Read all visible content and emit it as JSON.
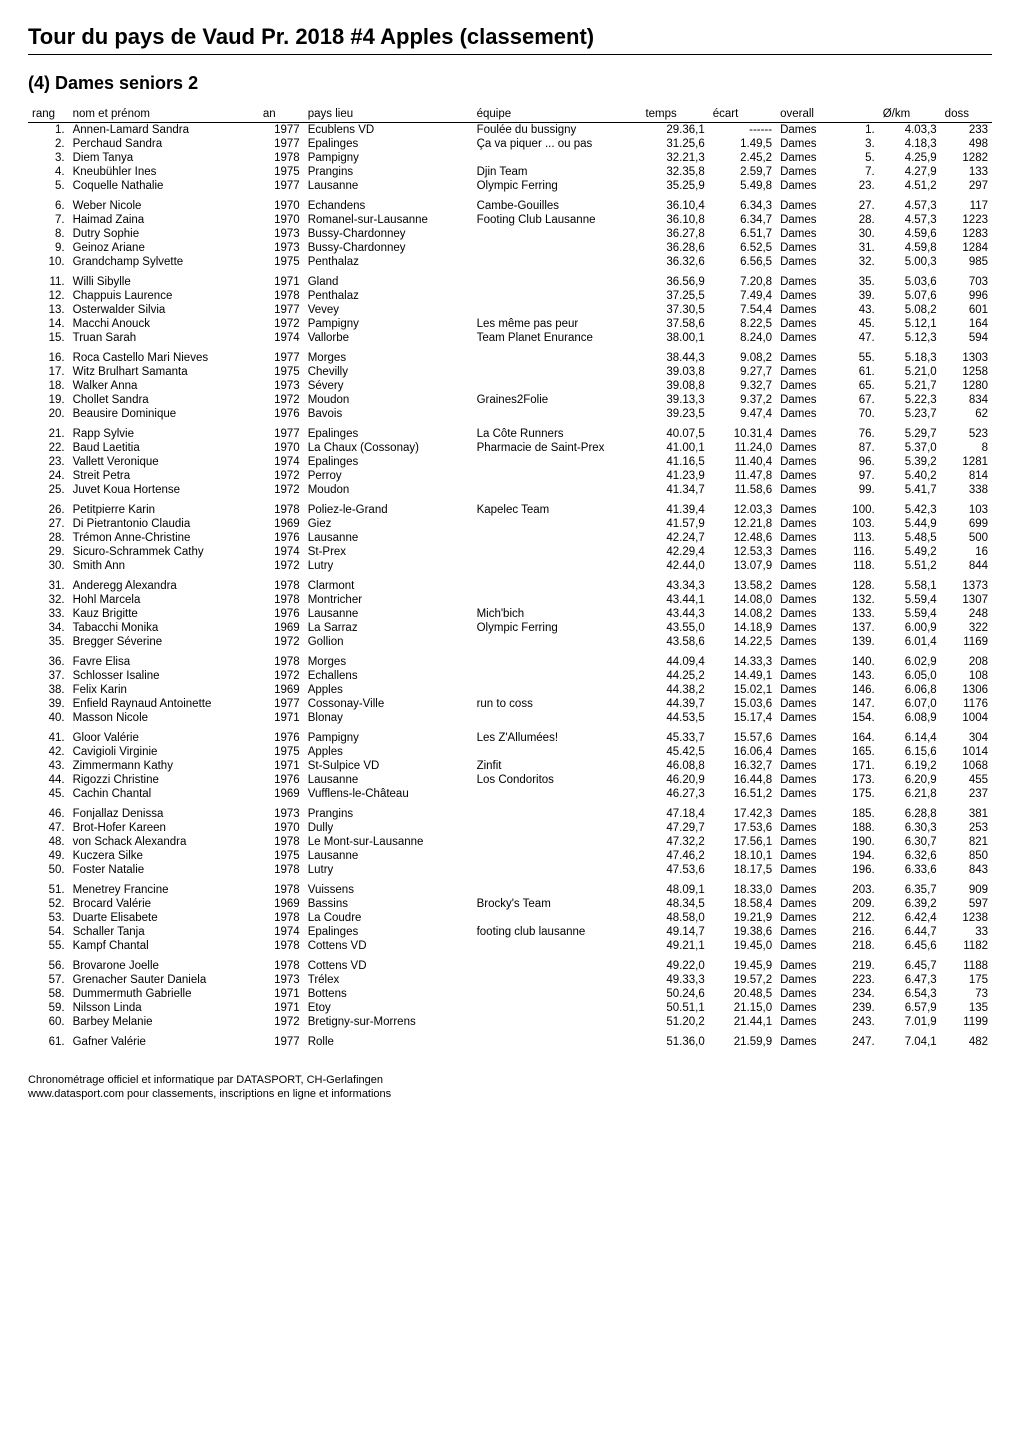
{
  "page_title": "Tour du pays de Vaud Pr. 2018 #4 Apples (classement)",
  "section_title": "(4) Dames seniors 2",
  "columns": {
    "rang": "rang",
    "nom": "nom et prénom",
    "an": "an",
    "lieu": "pays lieu",
    "equipe": "équipe",
    "temps": "temps",
    "ecart": "écart",
    "overall": "overall",
    "okm": "Ø/km",
    "doss": "doss"
  },
  "footer_line1": "Chronométrage officiel et informatique par DATASPORT, CH-Gerlafingen",
  "footer_line2": "www.datasport.com pour classements, inscriptions en ligne et informations",
  "groups": [
    [
      {
        "rang": "1.",
        "nom": "Annen-Lamard Sandra",
        "an": "1977",
        "lieu": "Ecublens VD",
        "equipe": "Foulée du bussigny",
        "temps": "29.36,1",
        "ecart": "------",
        "overall": "Dames",
        "ovrank": "1.",
        "okm": "4.03,3",
        "doss": "233"
      },
      {
        "rang": "2.",
        "nom": "Perchaud Sandra",
        "an": "1977",
        "lieu": "Epalinges",
        "equipe": "Ça va piquer ... ou pas",
        "temps": "31.25,6",
        "ecart": "1.49,5",
        "overall": "Dames",
        "ovrank": "3.",
        "okm": "4.18,3",
        "doss": "498"
      },
      {
        "rang": "3.",
        "nom": "Diem Tanya",
        "an": "1978",
        "lieu": "Pampigny",
        "equipe": "",
        "temps": "32.21,3",
        "ecart": "2.45,2",
        "overall": "Dames",
        "ovrank": "5.",
        "okm": "4.25,9",
        "doss": "1282"
      },
      {
        "rang": "4.",
        "nom": "Kneubühler Ines",
        "an": "1975",
        "lieu": "Prangins",
        "equipe": "Djin Team",
        "temps": "32.35,8",
        "ecart": "2.59,7",
        "overall": "Dames",
        "ovrank": "7.",
        "okm": "4.27,9",
        "doss": "133"
      },
      {
        "rang": "5.",
        "nom": "Coquelle Nathalie",
        "an": "1977",
        "lieu": "Lausanne",
        "equipe": "Olympic Ferring",
        "temps": "35.25,9",
        "ecart": "5.49,8",
        "overall": "Dames",
        "ovrank": "23.",
        "okm": "4.51,2",
        "doss": "297"
      }
    ],
    [
      {
        "rang": "6.",
        "nom": "Weber Nicole",
        "an": "1970",
        "lieu": "Echandens",
        "equipe": "Cambe-Gouilles",
        "temps": "36.10,4",
        "ecart": "6.34,3",
        "overall": "Dames",
        "ovrank": "27.",
        "okm": "4.57,3",
        "doss": "117"
      },
      {
        "rang": "7.",
        "nom": "Haimad Zaina",
        "an": "1970",
        "lieu": "Romanel-sur-Lausanne",
        "equipe": "Footing Club Lausanne",
        "temps": "36.10,8",
        "ecart": "6.34,7",
        "overall": "Dames",
        "ovrank": "28.",
        "okm": "4.57,3",
        "doss": "1223"
      },
      {
        "rang": "8.",
        "nom": "Dutry Sophie",
        "an": "1973",
        "lieu": "Bussy-Chardonney",
        "equipe": "",
        "temps": "36.27,8",
        "ecart": "6.51,7",
        "overall": "Dames",
        "ovrank": "30.",
        "okm": "4.59,6",
        "doss": "1283"
      },
      {
        "rang": "9.",
        "nom": "Geinoz Ariane",
        "an": "1973",
        "lieu": "Bussy-Chardonney",
        "equipe": "",
        "temps": "36.28,6",
        "ecart": "6.52,5",
        "overall": "Dames",
        "ovrank": "31.",
        "okm": "4.59,8",
        "doss": "1284"
      },
      {
        "rang": "10.",
        "nom": "Grandchamp Sylvette",
        "an": "1975",
        "lieu": "Penthalaz",
        "equipe": "",
        "temps": "36.32,6",
        "ecart": "6.56,5",
        "overall": "Dames",
        "ovrank": "32.",
        "okm": "5.00,3",
        "doss": "985"
      }
    ],
    [
      {
        "rang": "11.",
        "nom": "Willi Sibylle",
        "an": "1971",
        "lieu": "Gland",
        "equipe": "",
        "temps": "36.56,9",
        "ecart": "7.20,8",
        "overall": "Dames",
        "ovrank": "35.",
        "okm": "5.03,6",
        "doss": "703"
      },
      {
        "rang": "12.",
        "nom": "Chappuis Laurence",
        "an": "1978",
        "lieu": "Penthalaz",
        "equipe": "",
        "temps": "37.25,5",
        "ecart": "7.49,4",
        "overall": "Dames",
        "ovrank": "39.",
        "okm": "5.07,6",
        "doss": "996"
      },
      {
        "rang": "13.",
        "nom": "Osterwalder Silvia",
        "an": "1977",
        "lieu": "Vevey",
        "equipe": "",
        "temps": "37.30,5",
        "ecart": "7.54,4",
        "overall": "Dames",
        "ovrank": "43.",
        "okm": "5.08,2",
        "doss": "601"
      },
      {
        "rang": "14.",
        "nom": "Macchi Anouck",
        "an": "1972",
        "lieu": "Pampigny",
        "equipe": "Les même pas peur",
        "temps": "37.58,6",
        "ecart": "8.22,5",
        "overall": "Dames",
        "ovrank": "45.",
        "okm": "5.12,1",
        "doss": "164"
      },
      {
        "rang": "15.",
        "nom": "Truan Sarah",
        "an": "1974",
        "lieu": "Vallorbe",
        "equipe": "Team Planet Enurance",
        "temps": "38.00,1",
        "ecart": "8.24,0",
        "overall": "Dames",
        "ovrank": "47.",
        "okm": "5.12,3",
        "doss": "594"
      }
    ],
    [
      {
        "rang": "16.",
        "nom": "Roca Castello Mari Nieves",
        "an": "1977",
        "lieu": "Morges",
        "equipe": "",
        "temps": "38.44,3",
        "ecart": "9.08,2",
        "overall": "Dames",
        "ovrank": "55.",
        "okm": "5.18,3",
        "doss": "1303"
      },
      {
        "rang": "17.",
        "nom": "Witz Brulhart Samanta",
        "an": "1975",
        "lieu": "Chevilly",
        "equipe": "",
        "temps": "39.03,8",
        "ecart": "9.27,7",
        "overall": "Dames",
        "ovrank": "61.",
        "okm": "5.21,0",
        "doss": "1258"
      },
      {
        "rang": "18.",
        "nom": "Walker Anna",
        "an": "1973",
        "lieu": "Sévery",
        "equipe": "",
        "temps": "39.08,8",
        "ecart": "9.32,7",
        "overall": "Dames",
        "ovrank": "65.",
        "okm": "5.21,7",
        "doss": "1280"
      },
      {
        "rang": "19.",
        "nom": "Chollet Sandra",
        "an": "1972",
        "lieu": "Moudon",
        "equipe": "Graines2Folie",
        "temps": "39.13,3",
        "ecart": "9.37,2",
        "overall": "Dames",
        "ovrank": "67.",
        "okm": "5.22,3",
        "doss": "834"
      },
      {
        "rang": "20.",
        "nom": "Beausire Dominique",
        "an": "1976",
        "lieu": "Bavois",
        "equipe": "",
        "temps": "39.23,5",
        "ecart": "9.47,4",
        "overall": "Dames",
        "ovrank": "70.",
        "okm": "5.23,7",
        "doss": "62"
      }
    ],
    [
      {
        "rang": "21.",
        "nom": "Rapp Sylvie",
        "an": "1977",
        "lieu": "Epalinges",
        "equipe": "La Côte Runners",
        "temps": "40.07,5",
        "ecart": "10.31,4",
        "overall": "Dames",
        "ovrank": "76.",
        "okm": "5.29,7",
        "doss": "523"
      },
      {
        "rang": "22.",
        "nom": "Baud Laetitia",
        "an": "1970",
        "lieu": "La Chaux (Cossonay)",
        "equipe": "Pharmacie de Saint-Prex",
        "temps": "41.00,1",
        "ecart": "11.24,0",
        "overall": "Dames",
        "ovrank": "87.",
        "okm": "5.37,0",
        "doss": "8"
      },
      {
        "rang": "23.",
        "nom": "Vallett Veronique",
        "an": "1974",
        "lieu": "Epalinges",
        "equipe": "",
        "temps": "41.16,5",
        "ecart": "11.40,4",
        "overall": "Dames",
        "ovrank": "96.",
        "okm": "5.39,2",
        "doss": "1281"
      },
      {
        "rang": "24.",
        "nom": "Streit Petra",
        "an": "1972",
        "lieu": "Perroy",
        "equipe": "",
        "temps": "41.23,9",
        "ecart": "11.47,8",
        "overall": "Dames",
        "ovrank": "97.",
        "okm": "5.40,2",
        "doss": "814"
      },
      {
        "rang": "25.",
        "nom": "Juvet Koua Hortense",
        "an": "1972",
        "lieu": "Moudon",
        "equipe": "",
        "temps": "41.34,7",
        "ecart": "11.58,6",
        "overall": "Dames",
        "ovrank": "99.",
        "okm": "5.41,7",
        "doss": "338"
      }
    ],
    [
      {
        "rang": "26.",
        "nom": "Petitpierre Karin",
        "an": "1978",
        "lieu": "Poliez-le-Grand",
        "equipe": "Kapelec Team",
        "temps": "41.39,4",
        "ecart": "12.03,3",
        "overall": "Dames",
        "ovrank": "100.",
        "okm": "5.42,3",
        "doss": "103"
      },
      {
        "rang": "27.",
        "nom": "Di Pietrantonio Claudia",
        "an": "1969",
        "lieu": "Giez",
        "equipe": "",
        "temps": "41.57,9",
        "ecart": "12.21,8",
        "overall": "Dames",
        "ovrank": "103.",
        "okm": "5.44,9",
        "doss": "699"
      },
      {
        "rang": "28.",
        "nom": "Trémon Anne-Christine",
        "an": "1976",
        "lieu": "Lausanne",
        "equipe": "",
        "temps": "42.24,7",
        "ecart": "12.48,6",
        "overall": "Dames",
        "ovrank": "113.",
        "okm": "5.48,5",
        "doss": "500"
      },
      {
        "rang": "29.",
        "nom": "Sicuro-Schrammek Cathy",
        "an": "1974",
        "lieu": "St-Prex",
        "equipe": "",
        "temps": "42.29,4",
        "ecart": "12.53,3",
        "overall": "Dames",
        "ovrank": "116.",
        "okm": "5.49,2",
        "doss": "16"
      },
      {
        "rang": "30.",
        "nom": "Smith Ann",
        "an": "1972",
        "lieu": "Lutry",
        "equipe": "",
        "temps": "42.44,0",
        "ecart": "13.07,9",
        "overall": "Dames",
        "ovrank": "118.",
        "okm": "5.51,2",
        "doss": "844"
      }
    ],
    [
      {
        "rang": "31.",
        "nom": "Anderegg Alexandra",
        "an": "1978",
        "lieu": "Clarmont",
        "equipe": "",
        "temps": "43.34,3",
        "ecart": "13.58,2",
        "overall": "Dames",
        "ovrank": "128.",
        "okm": "5.58,1",
        "doss": "1373"
      },
      {
        "rang": "32.",
        "nom": "Hohl Marcela",
        "an": "1978",
        "lieu": "Montricher",
        "equipe": "",
        "temps": "43.44,1",
        "ecart": "14.08,0",
        "overall": "Dames",
        "ovrank": "132.",
        "okm": "5.59,4",
        "doss": "1307"
      },
      {
        "rang": "33.",
        "nom": "Kauz Brigitte",
        "an": "1976",
        "lieu": "Lausanne",
        "equipe": "Mich'bich",
        "temps": "43.44,3",
        "ecart": "14.08,2",
        "overall": "Dames",
        "ovrank": "133.",
        "okm": "5.59,4",
        "doss": "248"
      },
      {
        "rang": "34.",
        "nom": "Tabacchi Monika",
        "an": "1969",
        "lieu": "La Sarraz",
        "equipe": "Olympic Ferring",
        "temps": "43.55,0",
        "ecart": "14.18,9",
        "overall": "Dames",
        "ovrank": "137.",
        "okm": "6.00,9",
        "doss": "322"
      },
      {
        "rang": "35.",
        "nom": "Bregger Séverine",
        "an": "1972",
        "lieu": "Gollion",
        "equipe": "",
        "temps": "43.58,6",
        "ecart": "14.22,5",
        "overall": "Dames",
        "ovrank": "139.",
        "okm": "6.01,4",
        "doss": "1169"
      }
    ],
    [
      {
        "rang": "36.",
        "nom": "Favre Elisa",
        "an": "1978",
        "lieu": "Morges",
        "equipe": "",
        "temps": "44.09,4",
        "ecart": "14.33,3",
        "overall": "Dames",
        "ovrank": "140.",
        "okm": "6.02,9",
        "doss": "208"
      },
      {
        "rang": "37.",
        "nom": "Schlosser Isaline",
        "an": "1972",
        "lieu": "Echallens",
        "equipe": "",
        "temps": "44.25,2",
        "ecart": "14.49,1",
        "overall": "Dames",
        "ovrank": "143.",
        "okm": "6.05,0",
        "doss": "108"
      },
      {
        "rang": "38.",
        "nom": "Felix Karin",
        "an": "1969",
        "lieu": "Apples",
        "equipe": "",
        "temps": "44.38,2",
        "ecart": "15.02,1",
        "overall": "Dames",
        "ovrank": "146.",
        "okm": "6.06,8",
        "doss": "1306"
      },
      {
        "rang": "39.",
        "nom": "Enfield Raynaud Antoinette",
        "an": "1977",
        "lieu": "Cossonay-Ville",
        "equipe": "run to coss",
        "temps": "44.39,7",
        "ecart": "15.03,6",
        "overall": "Dames",
        "ovrank": "147.",
        "okm": "6.07,0",
        "doss": "1176"
      },
      {
        "rang": "40.",
        "nom": "Masson Nicole",
        "an": "1971",
        "lieu": "Blonay",
        "equipe": "",
        "temps": "44.53,5",
        "ecart": "15.17,4",
        "overall": "Dames",
        "ovrank": "154.",
        "okm": "6.08,9",
        "doss": "1004"
      }
    ],
    [
      {
        "rang": "41.",
        "nom": "Gloor Valérie",
        "an": "1976",
        "lieu": "Pampigny",
        "equipe": "Les Z'Allumées!",
        "temps": "45.33,7",
        "ecart": "15.57,6",
        "overall": "Dames",
        "ovrank": "164.",
        "okm": "6.14,4",
        "doss": "304"
      },
      {
        "rang": "42.",
        "nom": "Cavigioli Virginie",
        "an": "1975",
        "lieu": "Apples",
        "equipe": "",
        "temps": "45.42,5",
        "ecart": "16.06,4",
        "overall": "Dames",
        "ovrank": "165.",
        "okm": "6.15,6",
        "doss": "1014"
      },
      {
        "rang": "43.",
        "nom": "Zimmermann Kathy",
        "an": "1971",
        "lieu": "St-Sulpice VD",
        "equipe": "Zinfit",
        "temps": "46.08,8",
        "ecart": "16.32,7",
        "overall": "Dames",
        "ovrank": "171.",
        "okm": "6.19,2",
        "doss": "1068"
      },
      {
        "rang": "44.",
        "nom": "Rigozzi Christine",
        "an": "1976",
        "lieu": "Lausanne",
        "equipe": "Los Condoritos",
        "temps": "46.20,9",
        "ecart": "16.44,8",
        "overall": "Dames",
        "ovrank": "173.",
        "okm": "6.20,9",
        "doss": "455"
      },
      {
        "rang": "45.",
        "nom": "Cachin Chantal",
        "an": "1969",
        "lieu": "Vufflens-le-Château",
        "equipe": "",
        "temps": "46.27,3",
        "ecart": "16.51,2",
        "overall": "Dames",
        "ovrank": "175.",
        "okm": "6.21,8",
        "doss": "237"
      }
    ],
    [
      {
        "rang": "46.",
        "nom": "Fonjallaz Denissa",
        "an": "1973",
        "lieu": "Prangins",
        "equipe": "",
        "temps": "47.18,4",
        "ecart": "17.42,3",
        "overall": "Dames",
        "ovrank": "185.",
        "okm": "6.28,8",
        "doss": "381"
      },
      {
        "rang": "47.",
        "nom": "Brot-Hofer Kareen",
        "an": "1970",
        "lieu": "Dully",
        "equipe": "",
        "temps": "47.29,7",
        "ecart": "17.53,6",
        "overall": "Dames",
        "ovrank": "188.",
        "okm": "6.30,3",
        "doss": "253"
      },
      {
        "rang": "48.",
        "nom": "von Schack Alexandra",
        "an": "1978",
        "lieu": "Le Mont-sur-Lausanne",
        "equipe": "",
        "temps": "47.32,2",
        "ecart": "17.56,1",
        "overall": "Dames",
        "ovrank": "190.",
        "okm": "6.30,7",
        "doss": "821"
      },
      {
        "rang": "49.",
        "nom": "Kuczera Silke",
        "an": "1975",
        "lieu": "Lausanne",
        "equipe": "",
        "temps": "47.46,2",
        "ecart": "18.10,1",
        "overall": "Dames",
        "ovrank": "194.",
        "okm": "6.32,6",
        "doss": "850"
      },
      {
        "rang": "50.",
        "nom": "Foster Natalie",
        "an": "1978",
        "lieu": "Lutry",
        "equipe": "",
        "temps": "47.53,6",
        "ecart": "18.17,5",
        "overall": "Dames",
        "ovrank": "196.",
        "okm": "6.33,6",
        "doss": "843"
      }
    ],
    [
      {
        "rang": "51.",
        "nom": "Menetrey Francine",
        "an": "1978",
        "lieu": "Vuissens",
        "equipe": "",
        "temps": "48.09,1",
        "ecart": "18.33,0",
        "overall": "Dames",
        "ovrank": "203.",
        "okm": "6.35,7",
        "doss": "909"
      },
      {
        "rang": "52.",
        "nom": "Brocard Valérie",
        "an": "1969",
        "lieu": "Bassins",
        "equipe": "Brocky's Team",
        "temps": "48.34,5",
        "ecart": "18.58,4",
        "overall": "Dames",
        "ovrank": "209.",
        "okm": "6.39,2",
        "doss": "597"
      },
      {
        "rang": "53.",
        "nom": "Duarte Elisabete",
        "an": "1978",
        "lieu": "La Coudre",
        "equipe": "",
        "temps": "48.58,0",
        "ecart": "19.21,9",
        "overall": "Dames",
        "ovrank": "212.",
        "okm": "6.42,4",
        "doss": "1238"
      },
      {
        "rang": "54.",
        "nom": "Schaller Tanja",
        "an": "1974",
        "lieu": "Epalinges",
        "equipe": "footing club lausanne",
        "temps": "49.14,7",
        "ecart": "19.38,6",
        "overall": "Dames",
        "ovrank": "216.",
        "okm": "6.44,7",
        "doss": "33"
      },
      {
        "rang": "55.",
        "nom": "Kampf Chantal",
        "an": "1978",
        "lieu": "Cottens VD",
        "equipe": "",
        "temps": "49.21,1",
        "ecart": "19.45,0",
        "overall": "Dames",
        "ovrank": "218.",
        "okm": "6.45,6",
        "doss": "1182"
      }
    ],
    [
      {
        "rang": "56.",
        "nom": "Brovarone Joelle",
        "an": "1978",
        "lieu": "Cottens VD",
        "equipe": "",
        "temps": "49.22,0",
        "ecart": "19.45,9",
        "overall": "Dames",
        "ovrank": "219.",
        "okm": "6.45,7",
        "doss": "1188"
      },
      {
        "rang": "57.",
        "nom": "Grenacher Sauter Daniela",
        "an": "1973",
        "lieu": "Trélex",
        "equipe": "",
        "temps": "49.33,3",
        "ecart": "19.57,2",
        "overall": "Dames",
        "ovrank": "223.",
        "okm": "6.47,3",
        "doss": "175"
      },
      {
        "rang": "58.",
        "nom": "Dummermuth Gabrielle",
        "an": "1971",
        "lieu": "Bottens",
        "equipe": "",
        "temps": "50.24,6",
        "ecart": "20.48,5",
        "overall": "Dames",
        "ovrank": "234.",
        "okm": "6.54,3",
        "doss": "73"
      },
      {
        "rang": "59.",
        "nom": "Nilsson Linda",
        "an": "1971",
        "lieu": "Etoy",
        "equipe": "",
        "temps": "50.51,1",
        "ecart": "21.15,0",
        "overall": "Dames",
        "ovrank": "239.",
        "okm": "6.57,9",
        "doss": "135"
      },
      {
        "rang": "60.",
        "nom": "Barbey Melanie",
        "an": "1972",
        "lieu": "Bretigny-sur-Morrens",
        "equipe": "",
        "temps": "51.20,2",
        "ecart": "21.44,1",
        "overall": "Dames",
        "ovrank": "243.",
        "okm": "7.01,9",
        "doss": "1199"
      }
    ],
    [
      {
        "rang": "61.",
        "nom": "Gafner Valérie",
        "an": "1977",
        "lieu": "Rolle",
        "equipe": "",
        "temps": "51.36,0",
        "ecart": "21.59,9",
        "overall": "Dames",
        "ovrank": "247.",
        "okm": "7.04,1",
        "doss": "482"
      }
    ]
  ]
}
